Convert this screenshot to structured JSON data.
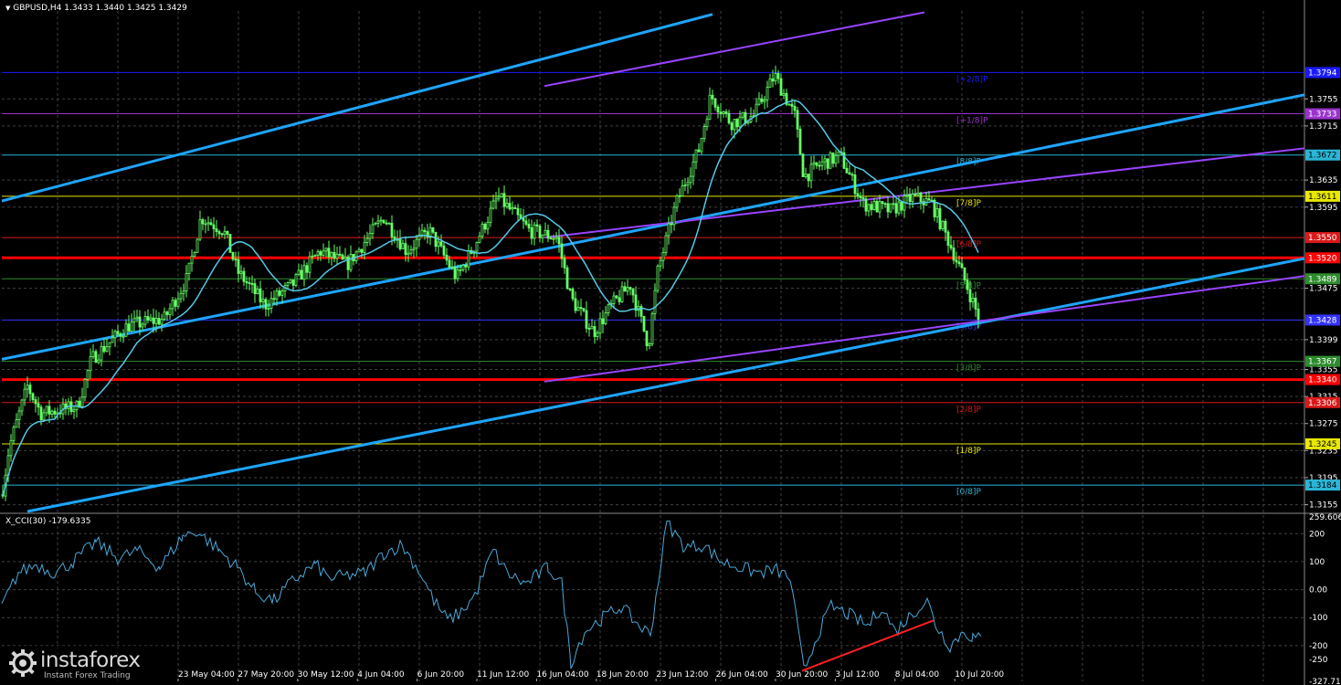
{
  "header": {
    "symbol_line": "GBPUSD,H4  1.3433 1.3440 1.3425 1.3429",
    "indicator_line": "X_CCI(30) -179.6335"
  },
  "brand": {
    "name": "instaforex",
    "tagline": "Instant Forex Trading"
  },
  "colors": {
    "background": "#000000",
    "grid": "#404040",
    "candles": "#66ff66",
    "moving_average": "#55c8e6",
    "channel_main": "#1ea5ff",
    "channel_secondary": "#9944ff",
    "support_resistance": "#ff0000",
    "cci_line": "#4aa8d8",
    "cci_trend": "#ff2020"
  },
  "chart_data": {
    "type": "candlestick",
    "symbol": "GBPUSD",
    "timeframe": "H4",
    "ohlc_current": {
      "open": 1.3433,
      "high": 1.344,
      "low": 1.3425,
      "close": 1.3429
    },
    "price_axis": {
      "range": [
        1.3145,
        1.3885
      ],
      "ticks": [
        "1.3755",
        "1.3715",
        "1.3635",
        "1.3595",
        "1.3475",
        "1.3399",
        "1.3355",
        "1.3315",
        "1.3275",
        "1.3235",
        "1.3195",
        "1.3155"
      ]
    },
    "time_axis": {
      "labels": [
        "23 May 04:00",
        "27 May 20:00",
        "30 May 12:00",
        "4 Jun 04:00",
        "6 Jun 20:00",
        "11 Jun 12:00",
        "16 Jun 04:00",
        "18 Jun 20:00",
        "23 Jun 12:00",
        "26 Jun 04:00",
        "30 Jun 20:00",
        "3 Jul 12:00",
        "8 Jul 04:00",
        "10 Jul 20:00"
      ]
    },
    "murrey_levels": [
      {
        "label": "[+2/8]P",
        "price": 1.3794,
        "tag": "1.3794",
        "color": "#1a1aff"
      },
      {
        "label": "[+1/8]P",
        "price": 1.3733,
        "tag": "1.3733",
        "color": "#9933cc"
      },
      {
        "label": "[8/8]P",
        "price": 1.3672,
        "tag": "1.3672",
        "color": "#29b6d6"
      },
      {
        "label": "[7/8]P",
        "price": 1.3611,
        "tag": "1.3611",
        "color": "#e8e800"
      },
      {
        "label": "[6/8]P",
        "price": 1.355,
        "tag": "1.3550",
        "color": "#d91a1a"
      },
      {
        "label": "[5/8]P",
        "price": 1.3489,
        "tag": "1.3489",
        "color": "#2e8b2e"
      },
      {
        "label": "[4/8]P",
        "price": 1.3428,
        "tag": "1.3428",
        "color": "#3333ff"
      },
      {
        "label": "[3/8]P",
        "price": 1.3367,
        "tag": "1.3367",
        "color": "#2e8b2e"
      },
      {
        "label": "[2/8]P",
        "price": 1.3306,
        "tag": "1.3306",
        "color": "#d91a1a"
      },
      {
        "label": "[1/8]P",
        "price": 1.3245,
        "tag": "1.3245",
        "color": "#e8e800"
      },
      {
        "label": "[0/8]P",
        "price": 1.3184,
        "tag": "1.3184",
        "color": "#29b6d6"
      }
    ],
    "red_lines": [
      {
        "price": 1.352,
        "tag": "1.3520"
      },
      {
        "price": 1.334,
        "tag": "1.3340"
      }
    ],
    "cci_panel": {
      "name": "X_CCI(30)",
      "current": -179.6335,
      "range": [
        -327.719,
        259.6065
      ],
      "ticks": [
        "259.6065",
        "200",
        "100",
        "0.00",
        "-100",
        "-200",
        "-250",
        "-327.719"
      ]
    }
  }
}
